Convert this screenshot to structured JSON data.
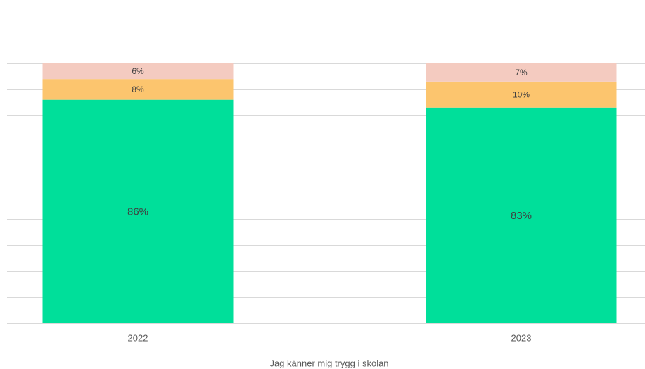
{
  "chart_data": {
    "type": "stacked_bar",
    "x_label": "Jag känner mig trygg i skolan",
    "categories": [
      "2022",
      "2023"
    ],
    "series": [
      {
        "color": "#00df9a",
        "values": [
          86,
          83
        ],
        "value_labels": [
          "86%",
          "83%"
        ]
      },
      {
        "color": "#fcc56e",
        "values": [
          8,
          10
        ],
        "value_labels": [
          "8%",
          "10%"
        ]
      },
      {
        "color": "#f4cbc0",
        "values": [
          6,
          7
        ],
        "value_labels": [
          "6%",
          "7%"
        ]
      }
    ],
    "ylim": [
      0,
      100
    ],
    "yticks": [
      0,
      10,
      20,
      30,
      40,
      50,
      60,
      70,
      80,
      90,
      100
    ],
    "grid": true
  }
}
